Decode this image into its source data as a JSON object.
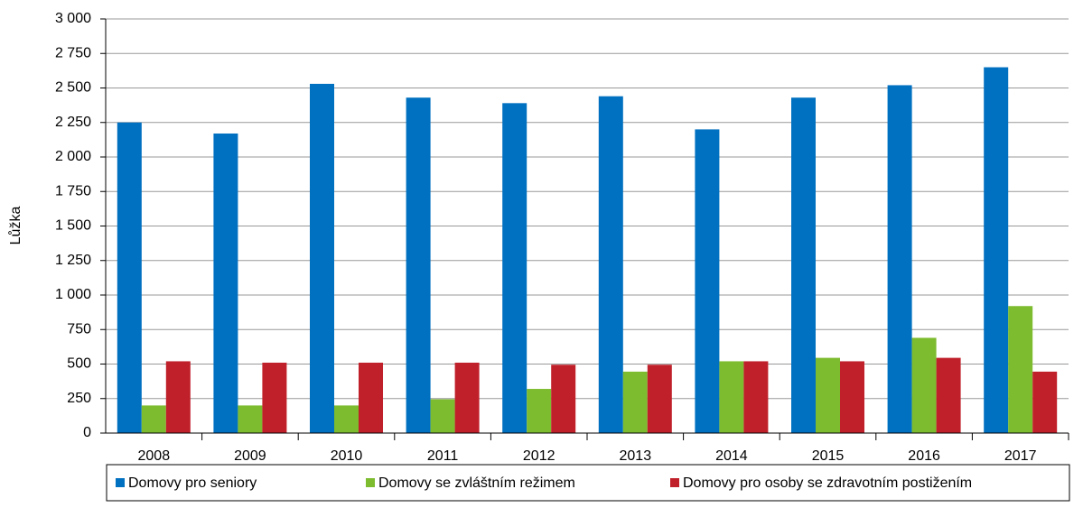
{
  "chart_data": {
    "type": "bar",
    "y_label": "Lůžka",
    "categories": [
      "2008",
      "2009",
      "2010",
      "2011",
      "2012",
      "2013",
      "2014",
      "2015",
      "2016",
      "2017"
    ],
    "series": [
      {
        "name": "Domovy pro seniory",
        "color": "#0070c0",
        "values": [
          2250,
          2170,
          2530,
          2430,
          2390,
          2440,
          2200,
          2430,
          2520,
          2650
        ]
      },
      {
        "name": "Domovy se zvláštním režimem",
        "color": "#7dbb2f",
        "values": [
          200,
          200,
          200,
          245,
          320,
          445,
          520,
          545,
          690,
          920
        ]
      },
      {
        "name": "Domovy pro osoby se zdravotním postižením",
        "color": "#c0202a",
        "values": [
          520,
          510,
          510,
          510,
          495,
          495,
          520,
          520,
          545,
          445
        ]
      }
    ],
    "ylim": [
      0,
      3000
    ],
    "yticks": [
      0,
      250,
      500,
      750,
      {
        "value": 1000,
        "label": "1 000"
      },
      {
        "value": 1250,
        "label": "1 250"
      },
      {
        "value": 1500,
        "label": "1 500"
      },
      {
        "value": 1750,
        "label": "1 750"
      },
      {
        "value": 2000,
        "label": "2 000"
      },
      {
        "value": 2250,
        "label": "2 250"
      },
      {
        "value": 2500,
        "label": "2 500"
      },
      {
        "value": 2750,
        "label": "2 750"
      },
      {
        "value": 3000,
        "label": "3 000"
      }
    ],
    "grid": true,
    "legend": "bottom"
  }
}
